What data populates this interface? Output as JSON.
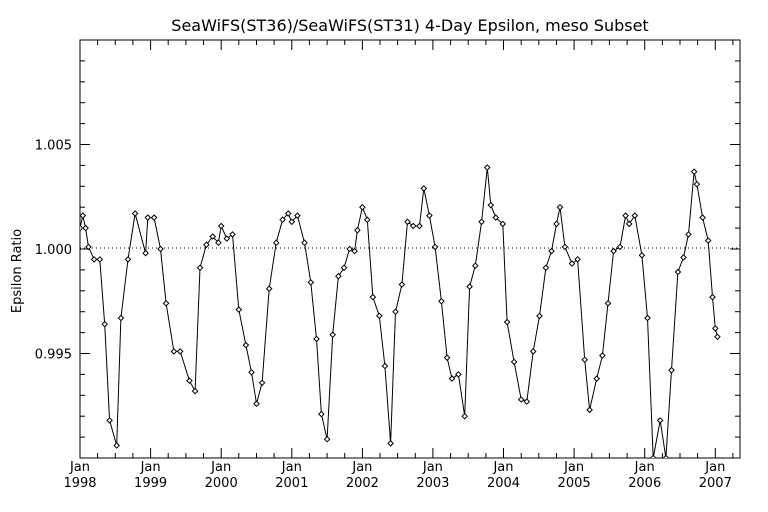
{
  "chart_data": {
    "type": "line",
    "title": "SeaWiFS(ST36)/SeaWiFS(ST31) 4-Day Epsilon, meso Subset",
    "xlabel": "",
    "ylabel": "Epsilon Ratio",
    "x_range": [
      1998.0,
      2007.35
    ],
    "ylim": [
      0.99,
      1.01
    ],
    "y_ticks": [
      {
        "value": 0.995,
        "label": "0.995"
      },
      {
        "value": 1.0,
        "label": "1.000"
      },
      {
        "value": 1.005,
        "label": "1.005"
      }
    ],
    "x_ticks": [
      {
        "value": 1998,
        "month": "Jan",
        "year": "1998"
      },
      {
        "value": 1999,
        "month": "Jan",
        "year": "1999"
      },
      {
        "value": 2000,
        "month": "Jan",
        "year": "2000"
      },
      {
        "value": 2001,
        "month": "Jan",
        "year": "2001"
      },
      {
        "value": 2002,
        "month": "Jan",
        "year": "2002"
      },
      {
        "value": 2003,
        "month": "Jan",
        "year": "2003"
      },
      {
        "value": 2004,
        "month": "Jan",
        "year": "2004"
      },
      {
        "value": 2005,
        "month": "Jan",
        "year": "2005"
      },
      {
        "value": 2006,
        "month": "Jan",
        "year": "2006"
      },
      {
        "value": 2007,
        "month": "Jan",
        "year": "2007"
      }
    ],
    "reference_line": {
      "y": 1.0,
      "style": "dotted"
    },
    "grid": false,
    "series": [
      {
        "color": "#000000",
        "marker": "diamond",
        "points": [
          [
            1998.0,
            1.001
          ],
          [
            1998.04,
            1.0016
          ],
          [
            1998.08,
            1.001
          ],
          [
            1998.12,
            1.0001
          ],
          [
            1998.2,
            0.9995
          ],
          [
            1998.28,
            0.9995
          ],
          [
            1998.35,
            0.9964
          ],
          [
            1998.42,
            0.9918
          ],
          [
            1998.52,
            0.9906
          ],
          [
            1998.58,
            0.9967
          ],
          [
            1998.68,
            0.9995
          ],
          [
            1998.78,
            1.0017
          ],
          [
            1998.93,
            0.9998
          ],
          [
            1998.96,
            1.0015
          ],
          [
            1999.05,
            1.0015
          ],
          [
            1999.14,
            1.0
          ],
          [
            1999.22,
            0.9974
          ],
          [
            1999.33,
            0.9951
          ],
          [
            1999.42,
            0.9951
          ],
          [
            1999.55,
            0.9937
          ],
          [
            1999.63,
            0.9932
          ],
          [
            1999.7,
            0.9991
          ],
          [
            1999.79,
            1.0002
          ],
          [
            1999.88,
            1.0006
          ],
          [
            1999.96,
            1.0003
          ],
          [
            2000.0,
            1.0011
          ],
          [
            2000.08,
            1.0005
          ],
          [
            2000.16,
            1.0007
          ],
          [
            2000.25,
            0.9971
          ],
          [
            2000.35,
            0.9954
          ],
          [
            2000.43,
            0.9941
          ],
          [
            2000.5,
            0.9926
          ],
          [
            2000.58,
            0.9936
          ],
          [
            2000.68,
            0.9981
          ],
          [
            2000.78,
            1.0003
          ],
          [
            2000.87,
            1.0014
          ],
          [
            2000.95,
            1.0017
          ],
          [
            2001.0,
            1.0013
          ],
          [
            2001.08,
            1.0016
          ],
          [
            2001.18,
            1.0003
          ],
          [
            2001.27,
            0.9984
          ],
          [
            2001.35,
            0.9957
          ],
          [
            2001.42,
            0.9921
          ],
          [
            2001.5,
            0.9909
          ],
          [
            2001.58,
            0.9959
          ],
          [
            2001.66,
            0.9987
          ],
          [
            2001.74,
            0.9991
          ],
          [
            2001.82,
            1.0
          ],
          [
            2001.89,
            0.9999
          ],
          [
            2001.93,
            1.0009
          ],
          [
            2002.0,
            1.002
          ],
          [
            2002.07,
            1.0014
          ],
          [
            2002.15,
            0.9977
          ],
          [
            2002.24,
            0.9968
          ],
          [
            2002.32,
            0.9944
          ],
          [
            2002.4,
            0.9907
          ],
          [
            2002.47,
            0.997
          ],
          [
            2002.56,
            0.9983
          ],
          [
            2002.64,
            1.0013
          ],
          [
            2002.72,
            1.0011
          ],
          [
            2002.81,
            1.0011
          ],
          [
            2002.87,
            1.0029
          ],
          [
            2002.95,
            1.0016
          ],
          [
            2003.03,
            1.0001
          ],
          [
            2003.12,
            0.9975
          ],
          [
            2003.2,
            0.9948
          ],
          [
            2003.27,
            0.9938
          ],
          [
            2003.36,
            0.994
          ],
          [
            2003.45,
            0.992
          ],
          [
            2003.52,
            0.9982
          ],
          [
            2003.6,
            0.9992
          ],
          [
            2003.69,
            1.0013
          ],
          [
            2003.77,
            1.0039
          ],
          [
            2003.82,
            1.0021
          ],
          [
            2003.89,
            1.0015
          ],
          [
            2003.99,
            1.0012
          ],
          [
            2004.05,
            0.9965
          ],
          [
            2004.15,
            0.9946
          ],
          [
            2004.25,
            0.9928
          ],
          [
            2004.33,
            0.9927
          ],
          [
            2004.42,
            0.9951
          ],
          [
            2004.51,
            0.9968
          ],
          [
            2004.6,
            0.9991
          ],
          [
            2004.68,
            0.9999
          ],
          [
            2004.75,
            1.0012
          ],
          [
            2004.8,
            1.002
          ],
          [
            2004.87,
            1.0001
          ],
          [
            2004.97,
            0.9993
          ],
          [
            2005.05,
            0.9995
          ],
          [
            2005.15,
            0.9947
          ],
          [
            2005.22,
            0.9923
          ],
          [
            2005.32,
            0.9938
          ],
          [
            2005.4,
            0.9949
          ],
          [
            2005.48,
            0.9974
          ],
          [
            2005.56,
            0.9999
          ],
          [
            2005.65,
            1.0001
          ],
          [
            2005.73,
            1.0016
          ],
          [
            2005.78,
            1.0012
          ],
          [
            2005.86,
            1.0016
          ],
          [
            2005.96,
            0.9997
          ],
          [
            2006.04,
            0.9967
          ],
          [
            2006.12,
            0.99
          ],
          [
            2006.22,
            0.9918
          ],
          [
            2006.3,
            0.99
          ],
          [
            2006.38,
            0.9942
          ],
          [
            2006.47,
            0.9989
          ],
          [
            2006.55,
            0.9996
          ],
          [
            2006.62,
            1.0007
          ],
          [
            2006.7,
            1.0037
          ],
          [
            2006.74,
            1.0031
          ],
          [
            2006.82,
            1.0015
          ],
          [
            2006.9,
            1.0004
          ],
          [
            2006.96,
            0.9977
          ],
          [
            2007.0,
            0.9962
          ],
          [
            2007.03,
            0.9958
          ]
        ]
      }
    ]
  }
}
